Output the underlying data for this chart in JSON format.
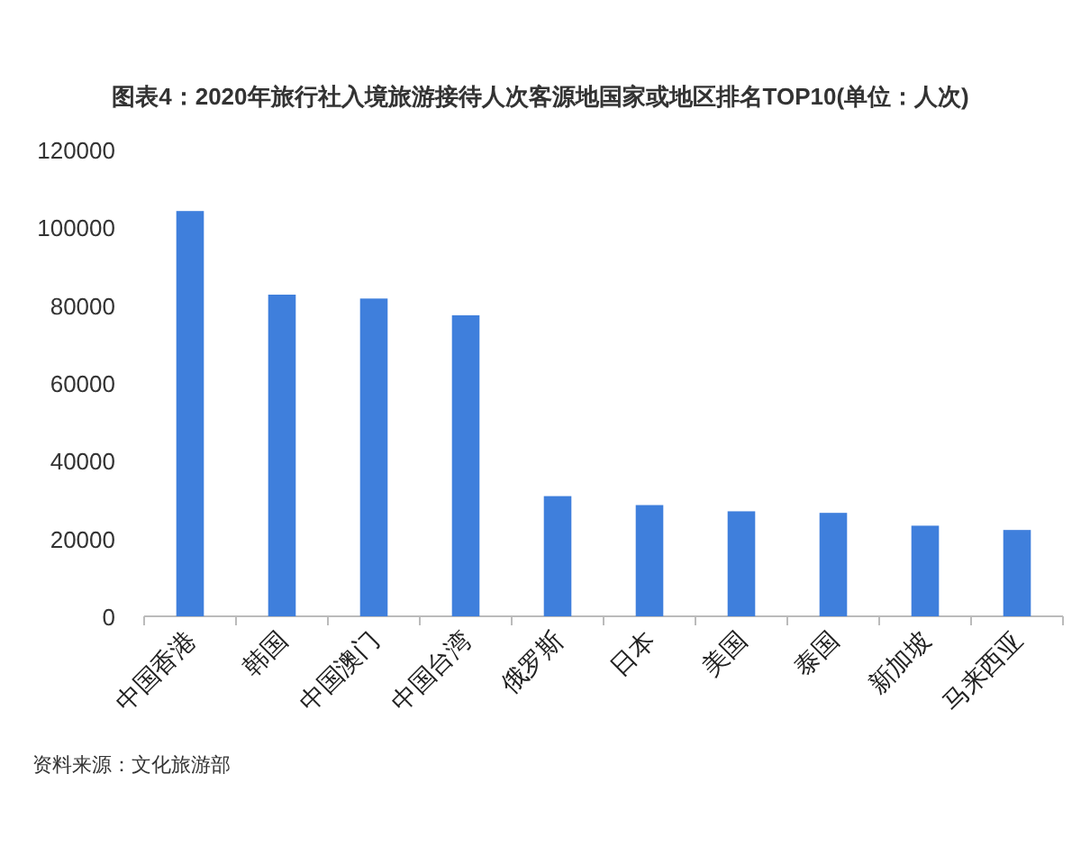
{
  "chart_data": {
    "type": "bar",
    "title": "图表4：2020年旅行社入境旅游接待人次客源地国家或地区排名TOP10(单位：人次)",
    "categories": [
      "中国香港",
      "韩国",
      "中国澳门",
      "中国台湾",
      "俄罗斯",
      "日本",
      "美国",
      "泰国",
      "新加坡",
      "马来西亚"
    ],
    "values": [
      104200,
      82700,
      81700,
      77400,
      30900,
      28600,
      27000,
      26600,
      23300,
      22200
    ],
    "color": "#3f7fdc",
    "ylim": [
      0,
      120000
    ],
    "yticks": [
      0,
      20000,
      40000,
      60000,
      80000,
      100000,
      120000
    ],
    "grid": false,
    "annotations": [
      "资料来源：文化旅游部"
    ]
  }
}
